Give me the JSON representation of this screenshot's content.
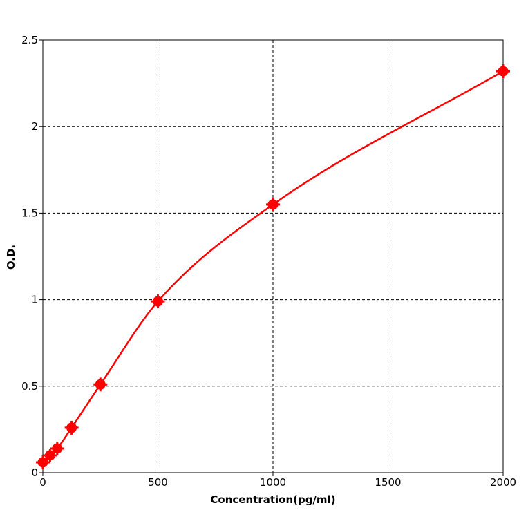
{
  "chart_data": {
    "type": "scatter",
    "xlabel": "Concentration(pg/ml)",
    "ylabel": "O.D.",
    "xlim": [
      0,
      2000
    ],
    "ylim": [
      0,
      2.5
    ],
    "xticks": [
      0,
      500,
      1000,
      1500,
      2000
    ],
    "yticks": [
      0,
      0.5,
      1,
      1.5,
      2,
      2.5
    ],
    "x_tick_labels": [
      "0",
      "500",
      "1000",
      "1500",
      "2000"
    ],
    "y_tick_labels": [
      "0",
      "0.5",
      "1",
      "1.5",
      "2",
      "2.5"
    ],
    "grid": true,
    "series": [
      {
        "color": "#ff0000",
        "x": [
          0,
          31.25,
          62.5,
          125,
          250,
          500,
          1000,
          2000
        ],
        "y": [
          0.06,
          0.1,
          0.14,
          0.26,
          0.51,
          0.99,
          1.55,
          2.32
        ],
        "fit_curve": true
      }
    ]
  }
}
